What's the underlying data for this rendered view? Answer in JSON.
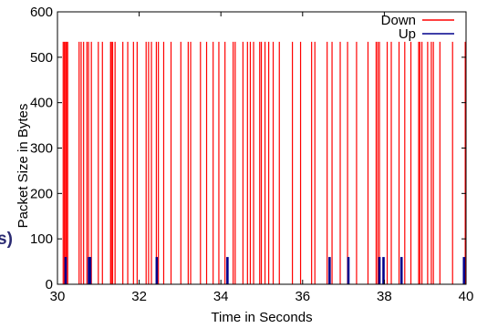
{
  "chart_data": {
    "type": "bar",
    "xlabel": "Time in Seconds",
    "ylabel": "Packet Size in Bytes",
    "xlim": [
      30,
      40
    ],
    "ylim": [
      0,
      600
    ],
    "x_ticks": [
      "30",
      "32",
      "34",
      "36",
      "38",
      "40"
    ],
    "y_ticks": [
      "0",
      "100",
      "200",
      "300",
      "400",
      "500",
      "600"
    ],
    "grid": false,
    "legend_position": "top-right",
    "series": [
      {
        "name": "Down",
        "color": "#ff0000",
        "value": 534,
        "x": [
          30.14,
          30.17,
          30.2,
          30.22,
          30.25,
          30.53,
          30.58,
          30.64,
          30.72,
          30.76,
          30.83,
          31.0,
          31.1,
          31.3,
          31.32,
          31.35,
          31.41,
          31.6,
          31.72,
          31.86,
          31.95,
          32.17,
          32.23,
          32.3,
          32.42,
          32.47,
          32.6,
          32.78,
          33.02,
          33.2,
          33.26,
          33.5,
          33.65,
          33.81,
          33.95,
          34.1,
          34.3,
          34.35,
          34.54,
          34.65,
          34.72,
          34.8,
          34.95,
          34.99,
          35.08,
          35.17,
          35.28,
          35.43,
          35.75,
          35.95,
          36.22,
          36.3,
          36.6,
          36.72,
          36.92,
          37.1,
          37.32,
          37.6,
          37.8,
          37.84,
          37.88,
          38.07,
          38.17,
          38.36,
          38.5,
          38.65,
          38.84,
          38.87,
          38.92,
          39.06,
          39.15,
          39.2,
          39.36,
          39.67,
          39.98
        ]
      },
      {
        "name": "Up",
        "color": "#00008b",
        "value": 60,
        "x": [
          30.2,
          30.77,
          30.8,
          32.43,
          34.16,
          36.66,
          37.12,
          37.88,
          37.98,
          38.42,
          39.95
        ]
      }
    ]
  },
  "edge_fragment": "s)"
}
